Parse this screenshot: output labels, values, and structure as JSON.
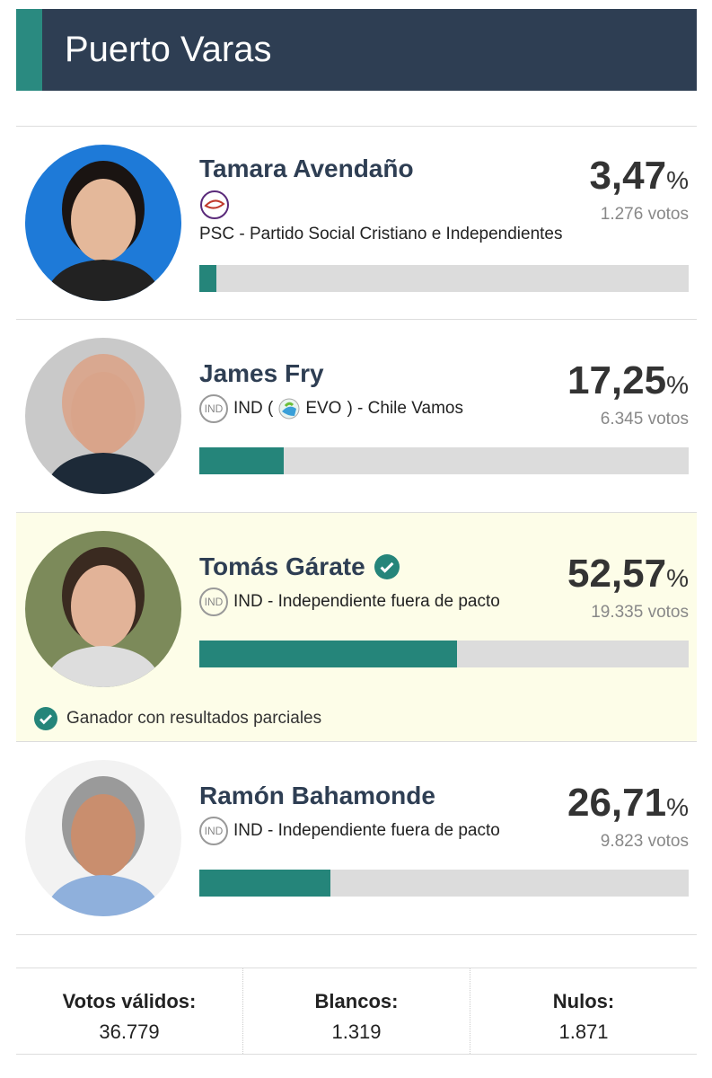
{
  "header": {
    "title": "Puerto Varas"
  },
  "bar_range": [
    0,
    100
  ],
  "percent_sign": "%",
  "candidates": [
    {
      "name": "Tamara Avendaño",
      "party": {
        "text": "PSC - Partido Social Cristiano e Independientes"
      },
      "percent": 3.47,
      "percent_label": "3,47",
      "votes": "1.276 votos"
    },
    {
      "name": "James Fry",
      "party": {
        "badge": "IND",
        "text": "IND (",
        "sub": "EVO",
        "tail": ") - Chile Vamos"
      },
      "percent": 17.25,
      "percent_label": "17,25",
      "votes": "6.345 votos"
    },
    {
      "name": "Tomás Gárate",
      "party": {
        "badge": "IND",
        "text": "IND - Independiente fuera de pacto"
      },
      "percent": 52.57,
      "percent_label": "52,57",
      "votes": "19.335 votos",
      "winner_note": "Ganador con resultados parciales"
    },
    {
      "name": "Ramón Bahamonde",
      "party": {
        "badge": "IND",
        "text": "IND - Independiente fuera de pacto"
      },
      "percent": 26.71,
      "percent_label": "26,71",
      "votes": "9.823 votos"
    }
  ],
  "totals": [
    {
      "label": "Votos válidos:",
      "value": "36.779"
    },
    {
      "label": "Blancos:",
      "value": "1.319"
    },
    {
      "label": "Nulos:",
      "value": "1.871"
    }
  ]
}
